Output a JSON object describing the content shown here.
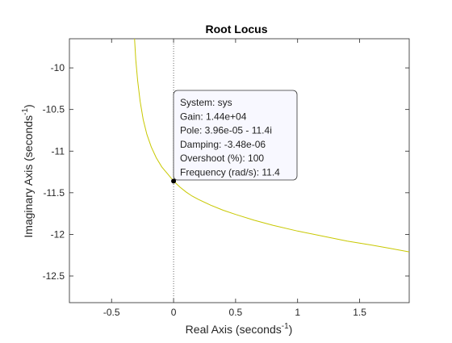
{
  "chart_data": {
    "type": "line",
    "title": "Root Locus",
    "xlabel": {
      "text": "Real Axis (seconds",
      "sup": "-1",
      "tail": ")"
    },
    "ylabel": {
      "text": "Imaginary Axis (seconds",
      "sup": "-1",
      "tail": ")"
    },
    "xlim": [
      -0.84,
      1.9
    ],
    "ylim": [
      -12.82,
      -9.65
    ],
    "xticks": [
      -0.5,
      0,
      0.5,
      1,
      1.5
    ],
    "xtick_labels": [
      "-0.5",
      "0",
      "0.5",
      "1",
      "1.5"
    ],
    "yticks": [
      -10,
      -10.5,
      -11,
      -11.5,
      -12,
      -12.5
    ],
    "ytick_labels": [
      "-10",
      "-10.5",
      "-11",
      "-11.5",
      "-12",
      "-12.5"
    ],
    "grid": false,
    "reference_line": {
      "x": 0,
      "style": "dotted"
    },
    "series": [
      {
        "color": "#c8c800",
        "x": [
          -0.315,
          -0.305,
          -0.29,
          -0.27,
          -0.245,
          -0.215,
          -0.18,
          -0.14,
          -0.095,
          -0.045,
          0.0,
          0.05,
          0.1,
          0.15,
          0.2,
          0.3,
          0.4,
          0.5,
          0.65,
          0.8,
          1.0,
          1.2,
          1.4,
          1.6,
          1.75,
          1.9
        ],
        "y": [
          -9.65,
          -9.9,
          -10.15,
          -10.4,
          -10.62,
          -10.8,
          -10.95,
          -11.08,
          -11.19,
          -11.28,
          -11.36,
          -11.43,
          -11.49,
          -11.54,
          -11.58,
          -11.65,
          -11.71,
          -11.76,
          -11.83,
          -11.89,
          -11.96,
          -12.02,
          -12.08,
          -12.13,
          -12.17,
          -12.21
        ]
      }
    ],
    "selected_point": {
      "x": 3.96e-05,
      "y": -11.36
    },
    "datatip": {
      "lines": [
        "System: sys",
        "Gain: 1.44e+04",
        "Pole: 3.96e-05 - 11.4i",
        "Damping: -3.48e-06",
        "Overshoot (%): 100",
        "Frequency (rad/s): 11.4"
      ]
    }
  }
}
